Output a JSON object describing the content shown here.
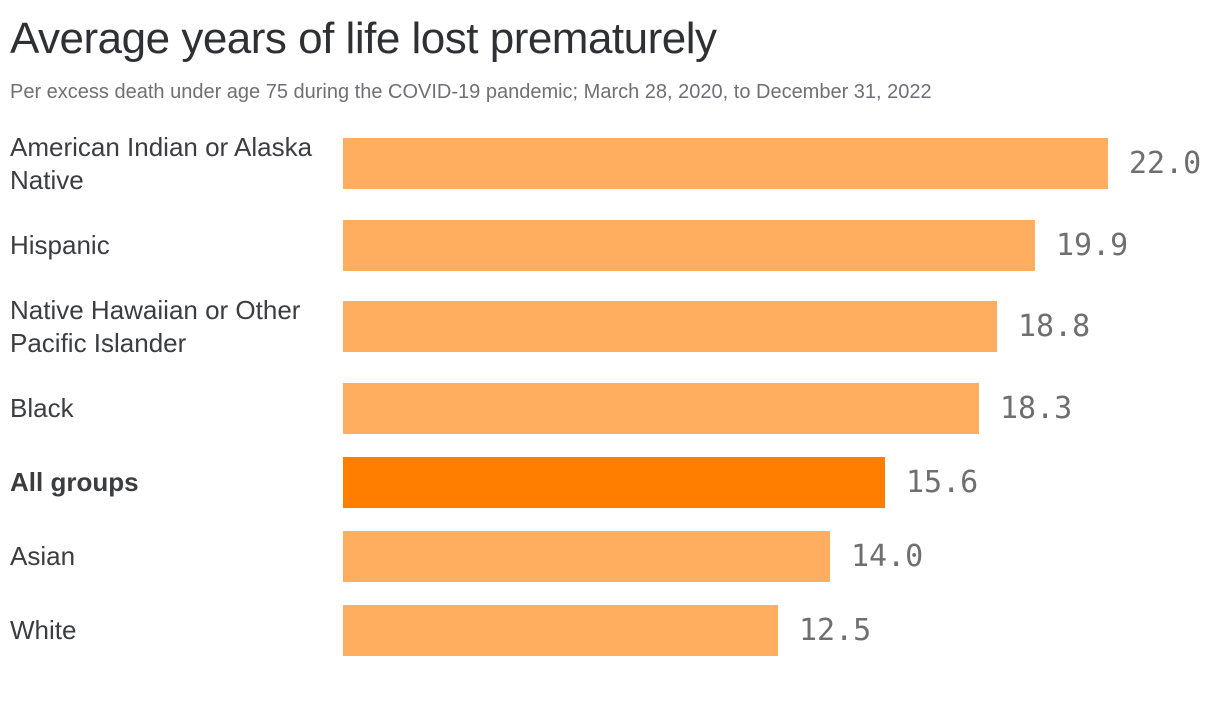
{
  "chart_data": {
    "type": "bar",
    "orientation": "horizontal",
    "title": "Average years of life lost prematurely",
    "subtitle": "Per excess death under age 75 during the COVID-19 pandemic; March 28, 2020, to December 31, 2022",
    "xlim": [
      0,
      22
    ],
    "grid": false,
    "legend": false,
    "bar_color": "#FFAD5E",
    "highlight_bar_color": "#FF7E00",
    "value_label_color": "#6F6F6F",
    "highlight_category": "All groups",
    "categories": [
      "American Indian or Alaska Native",
      "Hispanic",
      "Native Hawaiian or Other Pacific Islander",
      "Black",
      "All groups",
      "Asian",
      "White"
    ],
    "values": [
      22.0,
      19.9,
      18.8,
      18.3,
      15.6,
      14.0,
      12.5
    ],
    "rows": [
      {
        "category": "American Indian or Alaska Native",
        "value": 22.0,
        "display": "22.0",
        "highlight": false
      },
      {
        "category": "Hispanic",
        "value": 19.9,
        "display": "19.9",
        "highlight": false
      },
      {
        "category": "Native Hawaiian or Other Pacific Islander",
        "value": 18.8,
        "display": "18.8",
        "highlight": false
      },
      {
        "category": "Black",
        "value": 18.3,
        "display": "18.3",
        "highlight": false
      },
      {
        "category": "All groups",
        "value": 15.6,
        "display": "15.6",
        "highlight": true
      },
      {
        "category": "Asian",
        "value": 14.0,
        "display": "14.0",
        "highlight": false
      },
      {
        "category": "White",
        "value": 12.5,
        "display": "12.5",
        "highlight": false
      }
    ]
  }
}
